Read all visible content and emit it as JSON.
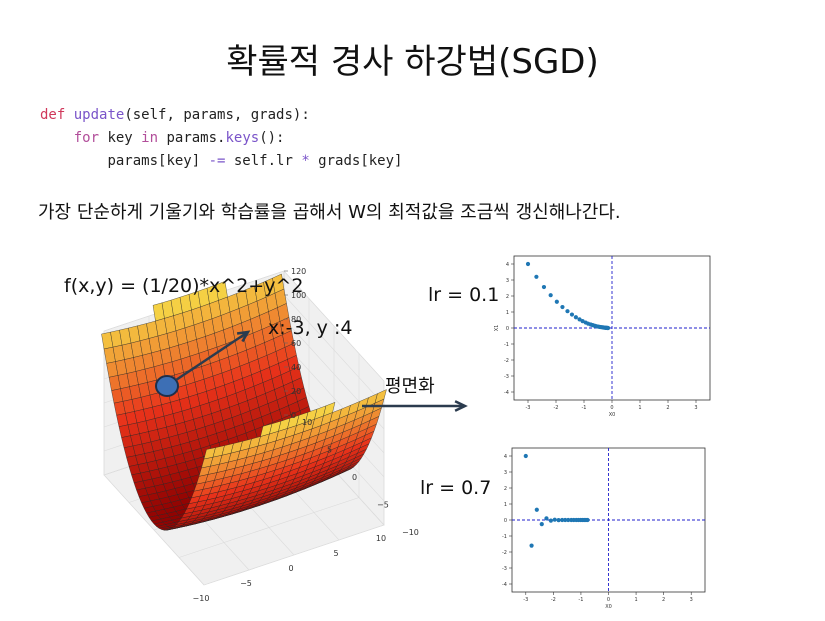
{
  "slide": {
    "title": "확률적 경사 하강법(SGD)",
    "description": "가장 단순하게 기울기와 학습률을 곱해서 W의 최적값을 조금씩 갱신해나간다."
  },
  "code": {
    "line1": {
      "kw": "def",
      "fn": "update",
      "rest": "(self, params, grads):"
    },
    "line2": {
      "kw": "for",
      "a": " key ",
      "kw2": "in",
      "b": " params.",
      "fn": "keys",
      "c": "():"
    },
    "line3": {
      "a": "params[key] ",
      "op": "-=",
      "b": " self.lr ",
      "op2": "*",
      "c": " grads[key]"
    }
  },
  "labels": {
    "function": "f(x,y) = (1/20)*x^2+y^2",
    "start_point": "x:-3, y :4",
    "contour": "평면화",
    "lr_top": "lr = 0.1",
    "lr_bottom": "lr = 0.7"
  },
  "colors": {
    "point": "#1f77b4",
    "guide": "#1f1fcc",
    "arrow": "#2b3b4e",
    "surface_low": "#8b0000",
    "surface_mid": "#e8321a",
    "surface_high": "#f7e84a"
  },
  "chart_data": [
    {
      "type": "surface",
      "z_function": "(1/20)*x^2+y^2",
      "x_ticks": [
        "−10",
        "−5",
        "0",
        "5",
        "10"
      ],
      "y_ticks": [
        "−10",
        "−5",
        "0",
        "5",
        "10"
      ],
      "z_ticks": [
        "0",
        "20",
        "40",
        "60",
        "80",
        "100",
        "120"
      ],
      "start": {
        "x": -3,
        "y": 4
      }
    },
    {
      "type": "scatter",
      "xlabel": "X0",
      "ylabel": "X1",
      "xlim": [
        -3.5,
        3.5
      ],
      "ylim": [
        -4.5,
        4.5
      ],
      "x_ticks": [
        "-3",
        "-2",
        "-1",
        "0",
        "1",
        "2",
        "3"
      ],
      "y_ticks": [
        "-4",
        "-3",
        "-2",
        "-1",
        "0",
        "1",
        "2",
        "3",
        "4"
      ],
      "x": [
        -3.0,
        -2.7,
        -2.43,
        -2.19,
        -1.97,
        -1.77,
        -1.59,
        -1.43,
        -1.29,
        -1.16,
        -1.05,
        -0.94,
        -0.85,
        -0.76,
        -0.69,
        -0.62,
        -0.56,
        -0.5,
        -0.45,
        -0.41,
        -0.37,
        -0.33,
        -0.3,
        -0.27,
        -0.24,
        -0.22,
        -0.2,
        -0.18,
        -0.16,
        -0.14
      ],
      "y": [
        4.0,
        3.2,
        2.56,
        2.05,
        1.64,
        1.31,
        1.05,
        0.84,
        0.67,
        0.54,
        0.43,
        0.34,
        0.27,
        0.22,
        0.18,
        0.14,
        0.11,
        0.09,
        0.07,
        0.06,
        0.05,
        0.04,
        0.03,
        0.02,
        0.02,
        0.01,
        0.01,
        0.01,
        0.0,
        0.0
      ]
    },
    {
      "type": "scatter",
      "xlabel": "X0",
      "xlim": [
        -3.5,
        3.5
      ],
      "ylim": [
        -4.5,
        4.5
      ],
      "x_ticks": [
        "-3",
        "-2",
        "-1",
        "0",
        "1",
        "2",
        "3"
      ],
      "y_ticks": [
        "-4",
        "-3",
        "-2",
        "-1",
        "0",
        "1",
        "2",
        "3",
        "4"
      ],
      "x": [
        -3.0,
        -2.79,
        -2.6,
        -2.42,
        -2.25,
        -2.09,
        -1.95,
        -1.81,
        -1.68,
        -1.57,
        -1.46,
        -1.35,
        -1.26,
        -1.17,
        -1.09,
        -1.01,
        -0.94,
        -0.88,
        -0.82,
        -0.76
      ],
      "y": [
        4.0,
        -1.6,
        0.64,
        -0.26,
        0.1,
        -0.04,
        0.02,
        -0.01,
        0.0,
        0.0,
        0.0,
        0.0,
        0.0,
        0.0,
        0.0,
        0.0,
        0.0,
        0.0,
        0.0,
        0.0
      ]
    }
  ]
}
